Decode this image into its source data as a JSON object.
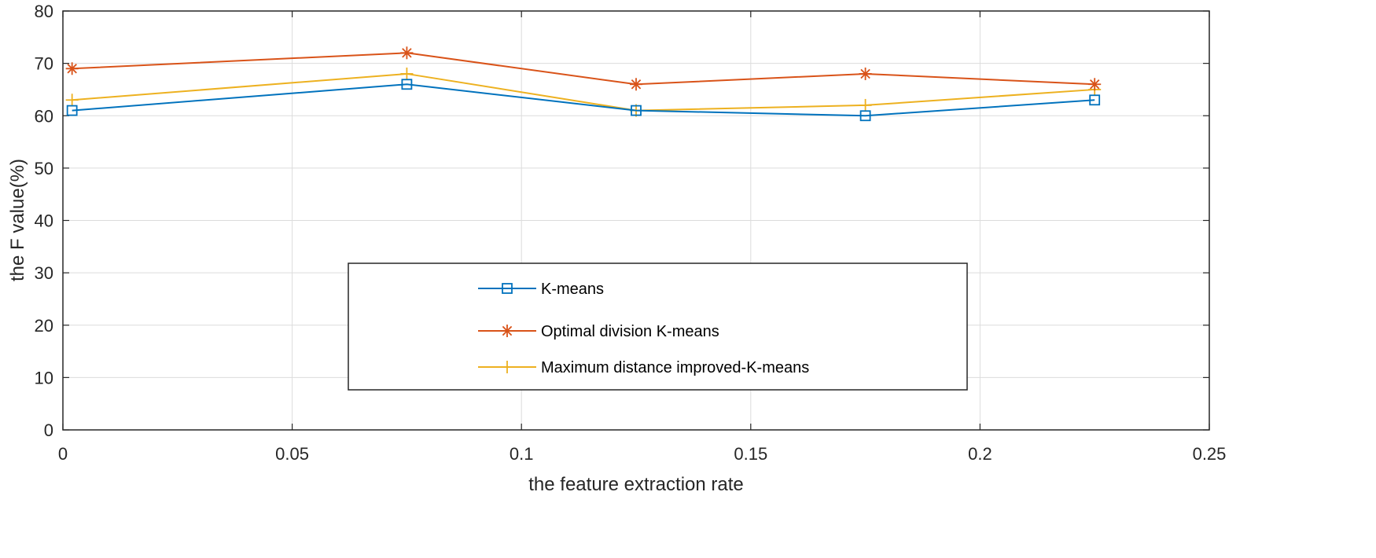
{
  "chart_data": {
    "type": "line",
    "title": "",
    "xlabel": "the feature extraction rate",
    "ylabel": "the F value(%)",
    "xlim": [
      0,
      0.25
    ],
    "ylim": [
      0,
      80
    ],
    "xticks": [
      0,
      0.05,
      0.1,
      0.15,
      0.2,
      0.25
    ],
    "xtick_labels": [
      "0",
      "0.05",
      "0.1",
      "0.15",
      "0.2",
      "0.25"
    ],
    "yticks": [
      0,
      10,
      20,
      30,
      40,
      50,
      60,
      70,
      80
    ],
    "ytick_labels": [
      "0",
      "10",
      "20",
      "30",
      "40",
      "50",
      "60",
      "70",
      "80"
    ],
    "grid": true,
    "legend_position": "bottom-center",
    "x": [
      0.002,
      0.075,
      0.125,
      0.175,
      0.225
    ],
    "series": [
      {
        "name": "K-means",
        "marker": "square",
        "color": "#0072BD",
        "values": [
          61,
          66,
          61,
          60,
          63
        ]
      },
      {
        "name": "Optimal division K-means",
        "marker": "asterisk",
        "color": "#D95319",
        "values": [
          69,
          72,
          66,
          68,
          66
        ]
      },
      {
        "name": "Maximum distance improved-K-means",
        "marker": "plus",
        "color": "#EDB120",
        "values": [
          63,
          68,
          61,
          62,
          65
        ]
      }
    ]
  }
}
